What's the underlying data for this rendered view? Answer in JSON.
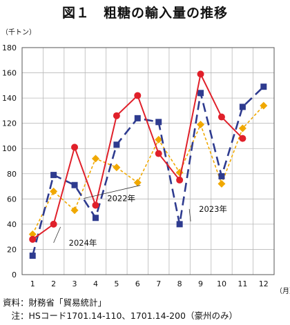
{
  "title": "図１　粗糖の輸入量の推移",
  "chart_data": {
    "type": "line",
    "ylabel": "（千トン）",
    "xlabel": "（月）",
    "ylim": [
      0,
      180
    ],
    "yticks": [
      0,
      20,
      40,
      60,
      80,
      100,
      120,
      140,
      160,
      180
    ],
    "x": [
      1,
      2,
      3,
      4,
      5,
      6,
      7,
      8,
      9,
      10,
      11,
      12
    ],
    "grid": true,
    "series": [
      {
        "name": "2022年",
        "color": "#f0a800",
        "marker": "diamond",
        "dash": "dotted",
        "values": [
          32,
          66,
          51,
          92,
          85,
          73,
          107,
          81,
          119,
          72,
          116,
          134
        ]
      },
      {
        "name": "2023年",
        "color": "#2e3b8f",
        "marker": "square",
        "dash": "longdash",
        "values": [
          15,
          79,
          71,
          45,
          103,
          124,
          121,
          40,
          144,
          78,
          133,
          149
        ]
      },
      {
        "name": "2024年",
        "color": "#e0202a",
        "marker": "circle",
        "dash": "solid",
        "values": [
          28,
          40,
          101,
          55,
          126,
          142,
          96,
          75,
          159,
          125,
          108,
          null
        ]
      }
    ]
  },
  "source": {
    "line1": "資料：財務省「貿易統計」",
    "line2": "　注：HSコード1701.14-110、1701.14-200（豪州のみ）"
  }
}
